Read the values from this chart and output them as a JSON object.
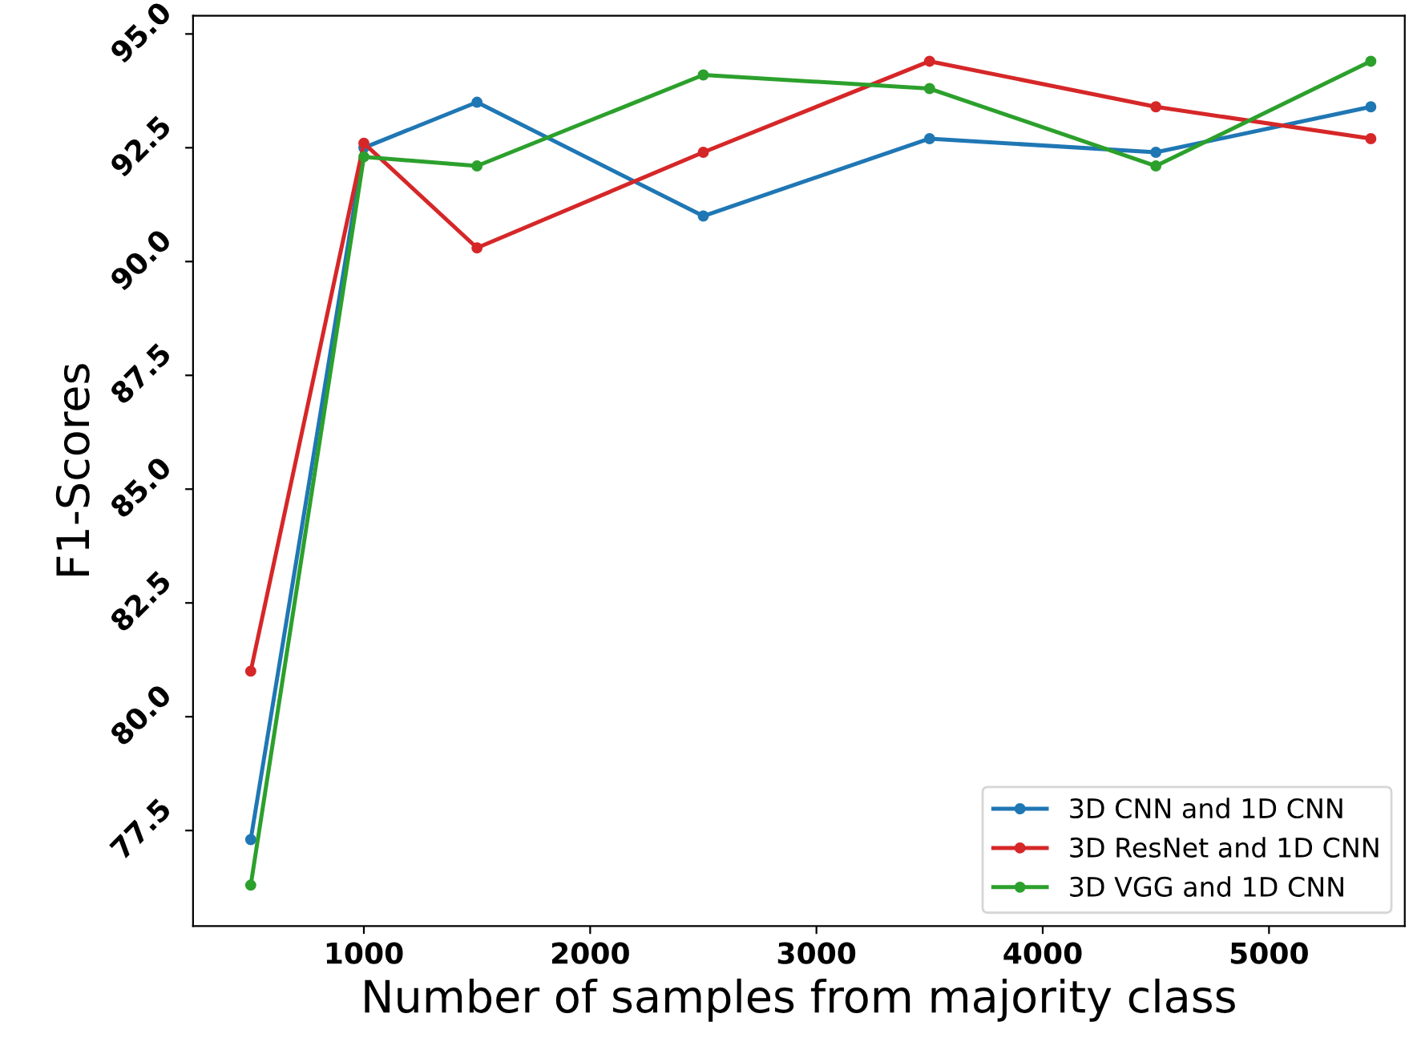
{
  "chart_data": {
    "type": "line",
    "xlabel": "Number of samples from majority class",
    "ylabel": "F1-Scores",
    "x": [
      500,
      1000,
      1500,
      2500,
      3500,
      4500,
      5450
    ],
    "series": [
      {
        "name": "3D CNN and 1D CNN",
        "color": "#1f77b4",
        "values": [
          77.3,
          92.5,
          93.5,
          91.0,
          92.7,
          92.4,
          93.4
        ]
      },
      {
        "name": "3D ResNet and 1D CNN",
        "color": "#d62728",
        "values": [
          81.0,
          92.6,
          90.3,
          92.4,
          94.4,
          93.4,
          92.7
        ]
      },
      {
        "name": "3D VGG and 1D CNN",
        "color": "#2ca02c",
        "values": [
          76.3,
          92.3,
          92.1,
          94.1,
          93.8,
          92.1,
          94.4
        ]
      }
    ],
    "xlim": [
      245,
      5600
    ],
    "ylim": [
      75.4,
      95.4
    ],
    "xticks": [
      1000,
      2000,
      3000,
      4000,
      5000
    ],
    "yticks": [
      77.5,
      {
        "value": 80,
        "label": "80.0"
      },
      82.5,
      {
        "value": 85,
        "label": "85.0"
      },
      87.5,
      {
        "value": 90,
        "label": "90.0"
      },
      92.5,
      {
        "value": 95,
        "label": "95.0"
      }
    ],
    "marker": "circle",
    "line_style": "solid",
    "legend": "bottom right",
    "grid": false
  }
}
